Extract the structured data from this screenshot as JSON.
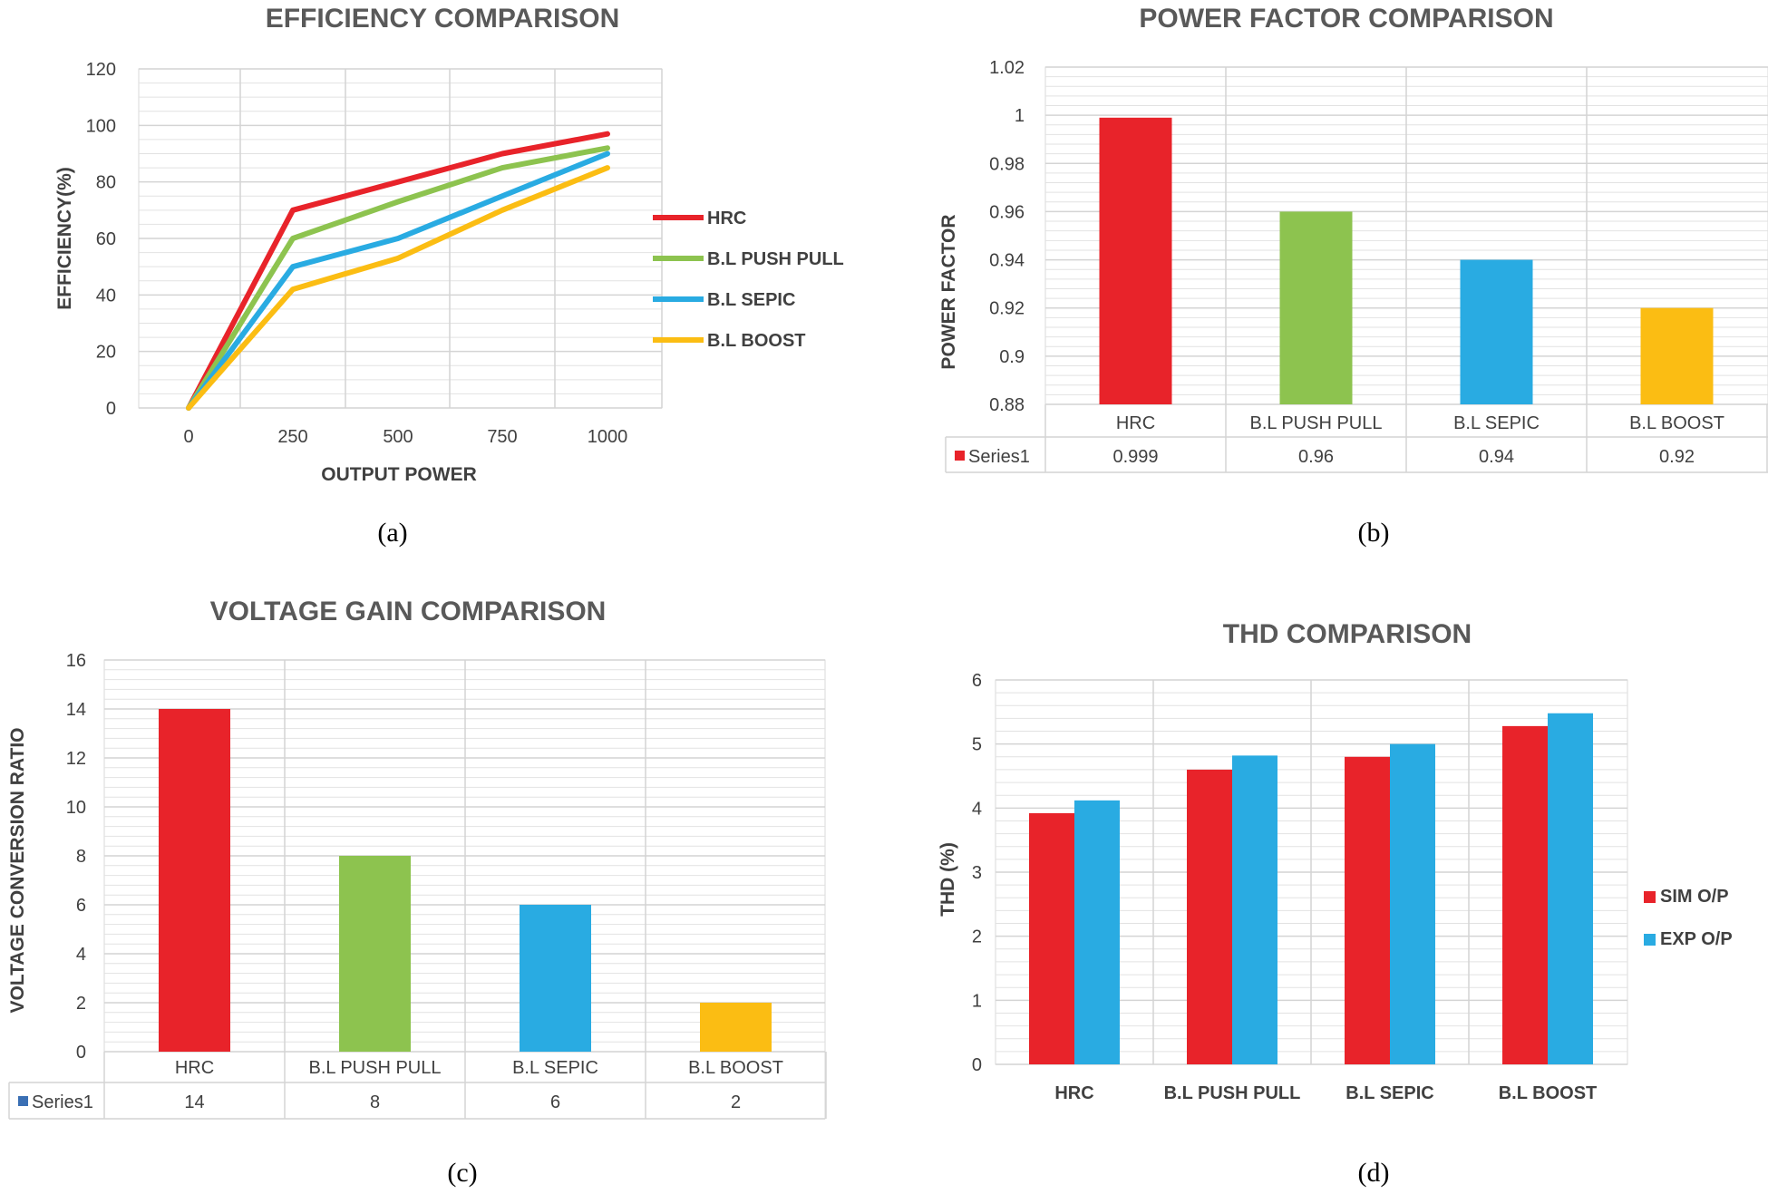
{
  "chart_data": [
    {
      "id": "a",
      "type": "line",
      "title": "EFFICIENCY COMPARISON",
      "xlabel": "OUTPUT  POWER",
      "ylabel": "EFFICIENCY(%)",
      "categories": [
        "0",
        "250",
        "500",
        "750",
        "1000"
      ],
      "yticks": [
        "0",
        "20",
        "40",
        "60",
        "80",
        "100",
        "120"
      ],
      "ylim": [
        0,
        120
      ],
      "series": [
        {
          "name": "HRC",
          "color": "#e8232a",
          "values": [
            0,
            70,
            80,
            90,
            97
          ]
        },
        {
          "name": "B.L PUSH PULL",
          "color": "#8dc34f",
          "values": [
            0,
            60,
            73,
            85,
            92
          ]
        },
        {
          "name": "B.L SEPIC",
          "color": "#29abe2",
          "values": [
            0,
            50,
            60,
            75,
            90
          ]
        },
        {
          "name": "B.L BOOST",
          "color": "#fbbd13",
          "values": [
            0,
            42,
            53,
            70,
            85
          ]
        }
      ],
      "caption": "(a)"
    },
    {
      "id": "b",
      "type": "bar",
      "title": "POWER FACTOR COMPARISON",
      "ylabel": "POWER FACTOR",
      "categories": [
        "HRC",
        "B.L PUSH PULL",
        "B.L SEPIC",
        "B.L BOOST"
      ],
      "values": [
        0.999,
        0.96,
        0.94,
        0.92
      ],
      "value_labels": [
        "0.999",
        "0.96",
        "0.94",
        "0.92"
      ],
      "colors": [
        "#e8232a",
        "#8dc34f",
        "#29abe2",
        "#fbbd13"
      ],
      "yticks": [
        "0.88",
        "0.9",
        "0.92",
        "0.94",
        "0.96",
        "0.98",
        "1",
        "1.02"
      ],
      "ylim": [
        0.88,
        1.02
      ],
      "table_label": "Series1",
      "legend_key_color": "#e8232a",
      "caption": "(b)"
    },
    {
      "id": "c",
      "type": "bar",
      "title": "VOLTAGE GAIN COMPARISON",
      "ylabel": "VOLTAGE CONVERSION  RATIO",
      "categories": [
        "HRC",
        "B.L PUSH PULL",
        "B.L SEPIC",
        "B.L BOOST"
      ],
      "values": [
        14,
        8,
        6,
        2
      ],
      "value_labels": [
        "14",
        "8",
        "6",
        "2"
      ],
      "colors": [
        "#e8232a",
        "#8dc34f",
        "#29abe2",
        "#fbbd13"
      ],
      "yticks": [
        "0",
        "2",
        "4",
        "6",
        "8",
        "10",
        "12",
        "14",
        "16"
      ],
      "ylim": [
        0,
        16
      ],
      "table_label": "Series1",
      "legend_key_color": "#3a6fb4",
      "caption": "(c)"
    },
    {
      "id": "d",
      "type": "bar",
      "title": "THD COMPARISON",
      "ylabel": "THD  (%)",
      "categories": [
        "HRC",
        "B.L PUSH PULL",
        "B.L SEPIC",
        "B.L BOOST"
      ],
      "series": [
        {
          "name": "SIM O/P",
          "color": "#e8232a",
          "values": [
            3.92,
            4.6,
            4.8,
            5.28
          ]
        },
        {
          "name": "EXP O/P",
          "color": "#29abe2",
          "values": [
            4.12,
            4.82,
            5.0,
            5.48
          ]
        }
      ],
      "yticks": [
        "0",
        "1",
        "2",
        "3",
        "4",
        "5",
        "6"
      ],
      "ylim": [
        0,
        6
      ],
      "caption": "(d)"
    }
  ]
}
